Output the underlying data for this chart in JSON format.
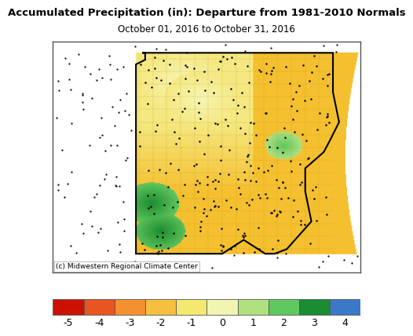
{
  "title_line1": "Accumulated Precipitation (in): Departure from 1981-2010 Normals",
  "title_line2": "October 01, 2016 to October 31, 2016",
  "title_fontsize": 9.5,
  "subtitle_fontsize": 8.5,
  "colorbar_colors": [
    "#cc1100",
    "#e85520",
    "#f59030",
    "#f5c040",
    "#f5e870",
    "#f0f5b0",
    "#b0e080",
    "#60c860",
    "#1a8c32",
    "#3c78c8"
  ],
  "colorbar_boundaries": [
    -5.5,
    -4.5,
    -3.5,
    -2.5,
    -1.5,
    -0.5,
    0.5,
    1.5,
    2.5,
    3.5,
    4.5
  ],
  "colorbar_ticks": [
    -5,
    -4,
    -3,
    -2,
    -1,
    0,
    1,
    2,
    3,
    4
  ],
  "colorbar_tick_labels": [
    "-5",
    "-4",
    "-3",
    "-2",
    "-1",
    "0",
    "1",
    "2",
    "3",
    "4"
  ],
  "colorbar_fontsize": 9,
  "figure_background": "#ffffff",
  "copyright_text": "(c) Midwestern Regional Climate Center",
  "copyright_fontsize": 6.5,
  "map_facecolor": "#f8f8f8",
  "map_edgecolor": "#aaaaaa",
  "missouri_fill": "#f5c850",
  "surrounding_fill": "#ffffff"
}
